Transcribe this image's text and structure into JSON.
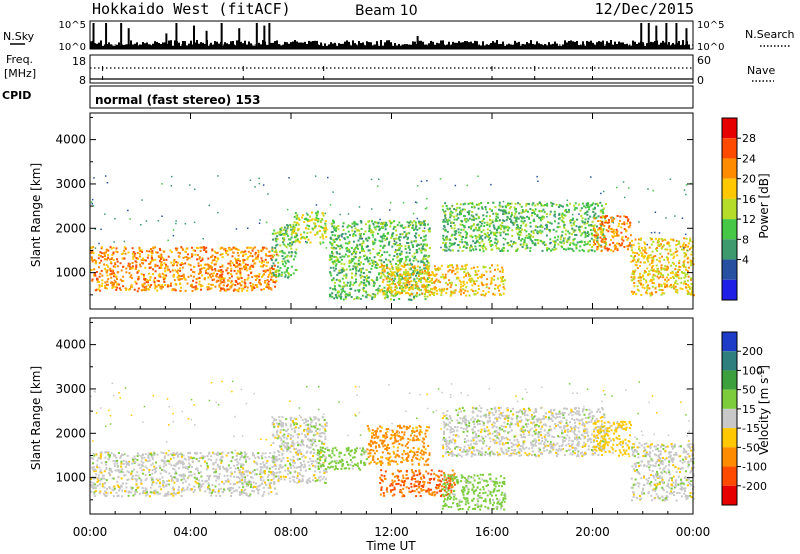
{
  "header": {
    "station": "Hokkaido West (fitACF)",
    "beam": "Beam 10",
    "date": "12/Dec/2015"
  },
  "panels": {
    "nsky_label": "N.Sky",
    "nsearch_label": "N.Search",
    "freq_label_1": "Freq.",
    "freq_label_2": "[MHz]",
    "nave_label": "Nave",
    "cpid_label": "CPID",
    "cpid_text": "normal (fast stereo) 153",
    "nsky_ticks": [
      "10^5",
      "10^0"
    ],
    "nsearch_ticks": [
      "10^5",
      "10^0"
    ],
    "freq_ticks": [
      "18",
      "8"
    ],
    "nave_ticks": [
      "60",
      "0"
    ]
  },
  "power_colorbar": {
    "label": "Power [dB]",
    "ticks": [
      "28",
      "24",
      "20",
      "16",
      "12",
      "8",
      "4"
    ],
    "colors": [
      "#e60000",
      "#ff4a00",
      "#ff8c00",
      "#ffc800",
      "#b4dc28",
      "#46c846",
      "#3c9a6e",
      "#2850a0",
      "#1e1ee6"
    ]
  },
  "velocity_colorbar": {
    "label": "Velocity [m s^-1]",
    "ticks": [
      "200",
      "100",
      "50",
      "15",
      "-15",
      "-50",
      "-100",
      "-200"
    ],
    "colors": [
      "#1e3cc8",
      "#2f7f7f",
      "#3ca03c",
      "#7ccc3c",
      "#c8c8c8",
      "#ffc800",
      "#ff8c00",
      "#ff4a00",
      "#e60000"
    ]
  },
  "chart_data": [
    {
      "type": "heatmap",
      "name": "power",
      "xlabel": "Time UT",
      "ylabel": "Slant Range [km]",
      "x_ticks": [
        "00:00",
        "04:00",
        "08:00",
        "12:00",
        "16:00",
        "20:00",
        "00:00"
      ],
      "xlim_hours": [
        0,
        24
      ],
      "ylim": [
        180,
        4600
      ],
      "y_ticks": [
        1000,
        2000,
        3000,
        4000
      ],
      "regions": [
        {
          "t0": 0.0,
          "t1": 7.4,
          "r_top": 1600,
          "r_bot": 600,
          "level": 24
        },
        {
          "t0": 7.2,
          "t1": 8.2,
          "r_top": 2100,
          "r_bot": 900,
          "level": 12
        },
        {
          "t0": 8.0,
          "t1": 9.4,
          "r_top": 2400,
          "r_bot": 1700,
          "level": 16
        },
        {
          "t0": 9.5,
          "t1": 13.5,
          "r_top": 2200,
          "r_bot": 400,
          "level": 12
        },
        {
          "t0": 11.5,
          "t1": 16.5,
          "r_top": 1200,
          "r_bot": 500,
          "level": 20
        },
        {
          "t0": 14.0,
          "t1": 20.5,
          "r_top": 2600,
          "r_bot": 1500,
          "level": 12
        },
        {
          "t0": 20.0,
          "t1": 21.5,
          "r_top": 2300,
          "r_bot": 1500,
          "level": 24
        },
        {
          "t0": 21.5,
          "t1": 24.0,
          "r_top": 1800,
          "r_bot": 500,
          "level": 20
        }
      ]
    },
    {
      "type": "heatmap",
      "name": "velocity",
      "xlabel": "Time UT",
      "ylabel": "Slant Range [km]",
      "x_ticks": [
        "00:00",
        "04:00",
        "08:00",
        "12:00",
        "16:00",
        "20:00",
        "00:00"
      ],
      "xlim_hours": [
        0,
        24
      ],
      "ylim": [
        180,
        4600
      ],
      "y_ticks": [
        1000,
        2000,
        3000,
        4000
      ],
      "regions": [
        {
          "t0": 0.0,
          "t1": 7.4,
          "r_top": 1600,
          "r_bot": 600,
          "level": 0
        },
        {
          "t0": 7.2,
          "t1": 9.4,
          "r_top": 2400,
          "r_bot": 900,
          "level": 0
        },
        {
          "t0": 9.0,
          "t1": 11.0,
          "r_top": 1700,
          "r_bot": 1200,
          "level": 30
        },
        {
          "t0": 11.0,
          "t1": 13.5,
          "r_top": 2200,
          "r_bot": 1300,
          "level": -60
        },
        {
          "t0": 11.5,
          "t1": 14.5,
          "r_top": 1200,
          "r_bot": 600,
          "level": -100
        },
        {
          "t0": 14.0,
          "t1": 16.5,
          "r_top": 1100,
          "r_bot": 300,
          "level": 30
        },
        {
          "t0": 14.0,
          "t1": 20.5,
          "r_top": 2600,
          "r_bot": 1500,
          "level": 0
        },
        {
          "t0": 20.0,
          "t1": 21.5,
          "r_top": 2300,
          "r_bot": 1500,
          "level": -30
        },
        {
          "t0": 21.5,
          "t1": 24.0,
          "r_top": 1800,
          "r_bot": 500,
          "level": 0
        }
      ]
    }
  ]
}
